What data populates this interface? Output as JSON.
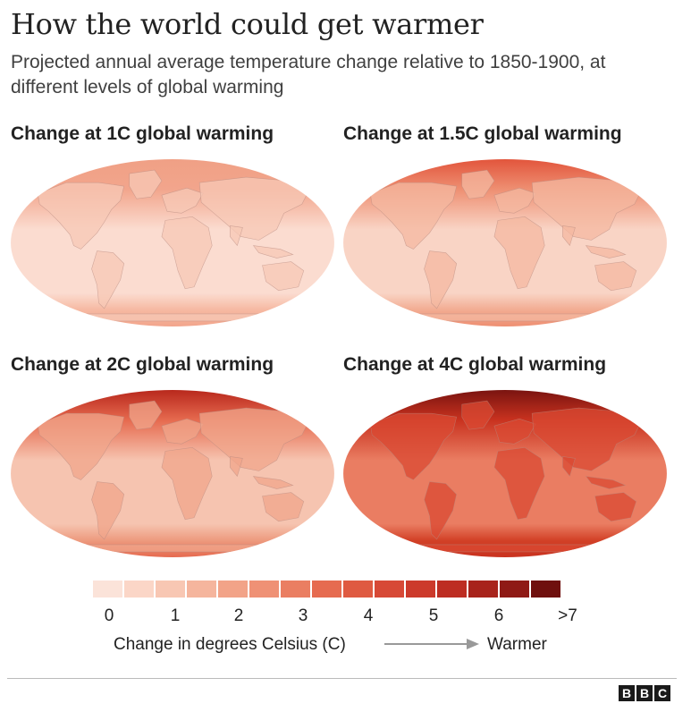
{
  "header": {
    "title": "How the world could get warmer",
    "subtitle": "Projected annual average temperature change relative to 1850-1900, at different levels of global warming"
  },
  "maps": [
    {
      "id": "1c",
      "label": "Change at 1C global warming",
      "base_color": "#fbdcd0",
      "north_color": "#f2a58c",
      "land_color": "#f7c8b5",
      "pole_color": "#f6b9a2",
      "arctic_color": "#f0a085"
    },
    {
      "id": "1-5c",
      "label": "Change at 1.5C global warming",
      "base_color": "#f9d4c5",
      "north_color": "#ee8f72",
      "land_color": "#f4b8a0",
      "pole_color": "#f2ac92",
      "arctic_color": "#e2553c"
    },
    {
      "id": "2c",
      "label": "Change at 2C global warming",
      "base_color": "#f6c4b0",
      "north_color": "#e66a4f",
      "land_color": "#f0a68b",
      "pole_color": "#ed9a7e",
      "arctic_color": "#b8281c"
    },
    {
      "id": "4c",
      "label": "Change at 4C global warming",
      "base_color": "#ea7d62",
      "north_color": "#c9321f",
      "land_color": "#d94a33",
      "pole_color": "#d24026",
      "arctic_color": "#7a1410"
    }
  ],
  "legend": {
    "swatches": [
      "#fbe3d9",
      "#fbd6c7",
      "#f8c7b3",
      "#f5b59d",
      "#f2a388",
      "#ef9175",
      "#ea7e62",
      "#e66b50",
      "#df5a41",
      "#d74936",
      "#cc3a2b",
      "#bd2d22",
      "#a8231b",
      "#8f1a15",
      "#6f100e"
    ],
    "ticks": [
      "0",
      "1",
      "2",
      "3",
      "4",
      "5",
      "6",
      ">7"
    ],
    "caption": "Change in degrees Celsius (C)",
    "warmer_label": "Warmer",
    "arrow_color": "#999999"
  },
  "footer": {
    "logo_letters": [
      "B",
      "B",
      "C"
    ]
  }
}
